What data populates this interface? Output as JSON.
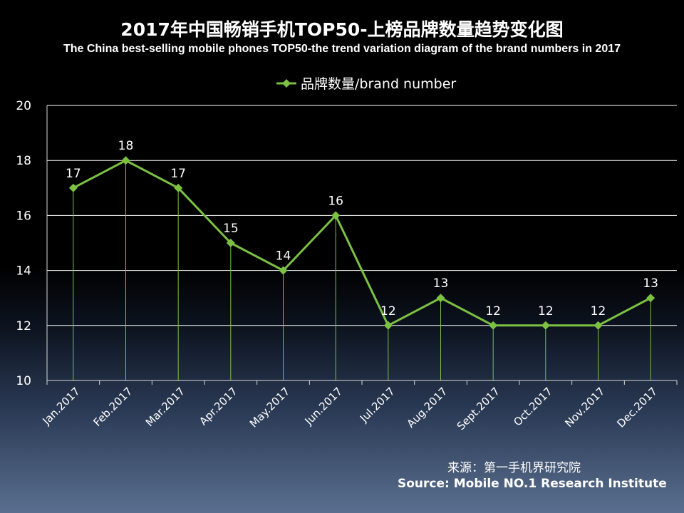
{
  "header": {
    "title": "2017年中国畅销手机TOP50-上榜品牌数量趋势变化图",
    "subtitle": "The China best-selling mobile phones TOP50-the trend variation diagram of the brand numbers in 2017"
  },
  "source": {
    "cn": "来源：第一手机界研究院",
    "en": "Source: Mobile NO.1 Research Institute"
  },
  "colors": {
    "series": "#7cc142",
    "axis": "#d9d9d9",
    "grid": "#ffffff"
  },
  "chart_data": {
    "type": "line",
    "title": "2017年中国畅销手机TOP50-上榜品牌数量趋势变化图",
    "categories": [
      "Jan.2017",
      "Feb.2017",
      "Mar.2017",
      "Apr.2017",
      "May.2017",
      "Jun.2017",
      "Jul.2017",
      "Aug.2017",
      "Sept.2017",
      "Oct.2017",
      "Nov.2017",
      "Dec.2017"
    ],
    "series": [
      {
        "name": "品牌数量/brand number",
        "values": [
          17,
          18,
          17,
          15,
          14,
          16,
          12,
          13,
          12,
          12,
          12,
          13
        ]
      }
    ],
    "ylim": [
      10,
      20
    ],
    "yticks": [
      10,
      12,
      14,
      16,
      18,
      20
    ],
    "grid": true,
    "drop_lines": true,
    "data_labels": true,
    "legend": "top-center",
    "xlabel": "",
    "ylabel": ""
  }
}
